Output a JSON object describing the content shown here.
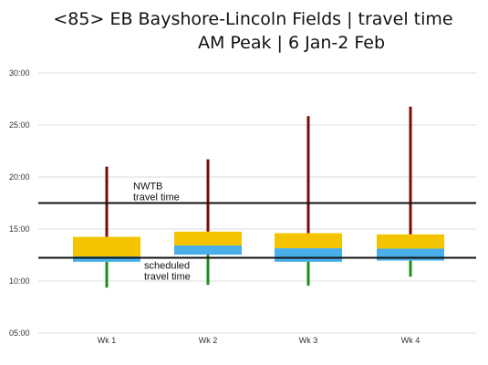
{
  "title": "<85> EB Bayshore-Lincoln Fields | travel time",
  "subtitle": "AM Peak | 6 Jan-2 Feb",
  "colors": {
    "whisker_high": "#7b0a0a",
    "whisker_low": "#1e8c1e",
    "upper_box": "#f5c400",
    "lower_box": "#4aaee8",
    "reference_line": "#111111",
    "grid": "#dddddd"
  },
  "chart_data": {
    "type": "box",
    "y_unit": "mm:ss",
    "ylim": [
      300,
      1800
    ],
    "y_ticks": [
      "05:00",
      "10:00",
      "15:00",
      "20:00",
      "25:00",
      "30:00"
    ],
    "y_tick_values": [
      300,
      600,
      900,
      1200,
      1500,
      1800
    ],
    "grid": true,
    "categories": [
      "Wk 1",
      "Wk 2",
      "Wk 3",
      "Wk 4"
    ],
    "boxes": [
      {
        "min": 562,
        "q1": 711,
        "median": 742,
        "q3": 855,
        "max": 1260
      },
      {
        "min": 578,
        "q1": 752,
        "median": 805,
        "q3": 885,
        "max": 1302
      },
      {
        "min": 573,
        "q1": 711,
        "median": 789,
        "q3": 876,
        "max": 1551
      },
      {
        "min": 625,
        "q1": 718,
        "median": 787,
        "q3": 869,
        "max": 1606
      }
    ],
    "reference_lines": [
      {
        "label": "NWTB travel time",
        "value": 1050
      },
      {
        "label": "scheduled travel time",
        "value": 734
      }
    ]
  }
}
